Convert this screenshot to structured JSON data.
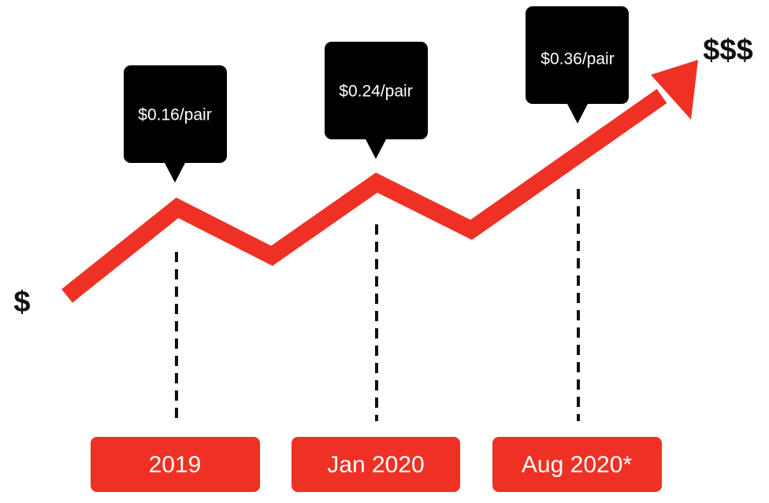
{
  "axis_labels": {
    "low": "$",
    "high": "$$$"
  },
  "points": [
    {
      "period": "2019",
      "price": "$0.16/pair"
    },
    {
      "period": "Jan 2020",
      "price": "$0.24/pair"
    },
    {
      "period": "Aug 2020*",
      "price": "$0.36/pair"
    }
  ]
}
